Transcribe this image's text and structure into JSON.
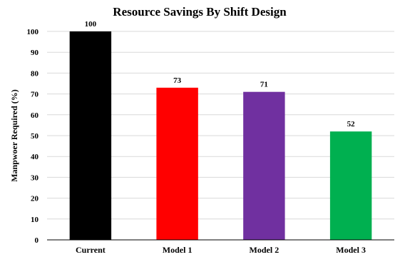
{
  "chart_data": {
    "type": "bar",
    "title": "Resource Savings By Shift Design",
    "xlabel": "",
    "ylabel": "Manpwoer Required (%)",
    "categories": [
      "Current",
      "Model 1",
      "Model 2",
      "Model 3"
    ],
    "values": [
      100,
      73,
      71,
      52
    ],
    "colors": [
      "#000000",
      "#ff0000",
      "#7030a0",
      "#00b050"
    ],
    "ylim": [
      0,
      100
    ],
    "yticks": [
      0,
      10,
      20,
      30,
      40,
      50,
      60,
      70,
      80,
      90,
      100
    ],
    "grid": true,
    "legend": "none"
  }
}
